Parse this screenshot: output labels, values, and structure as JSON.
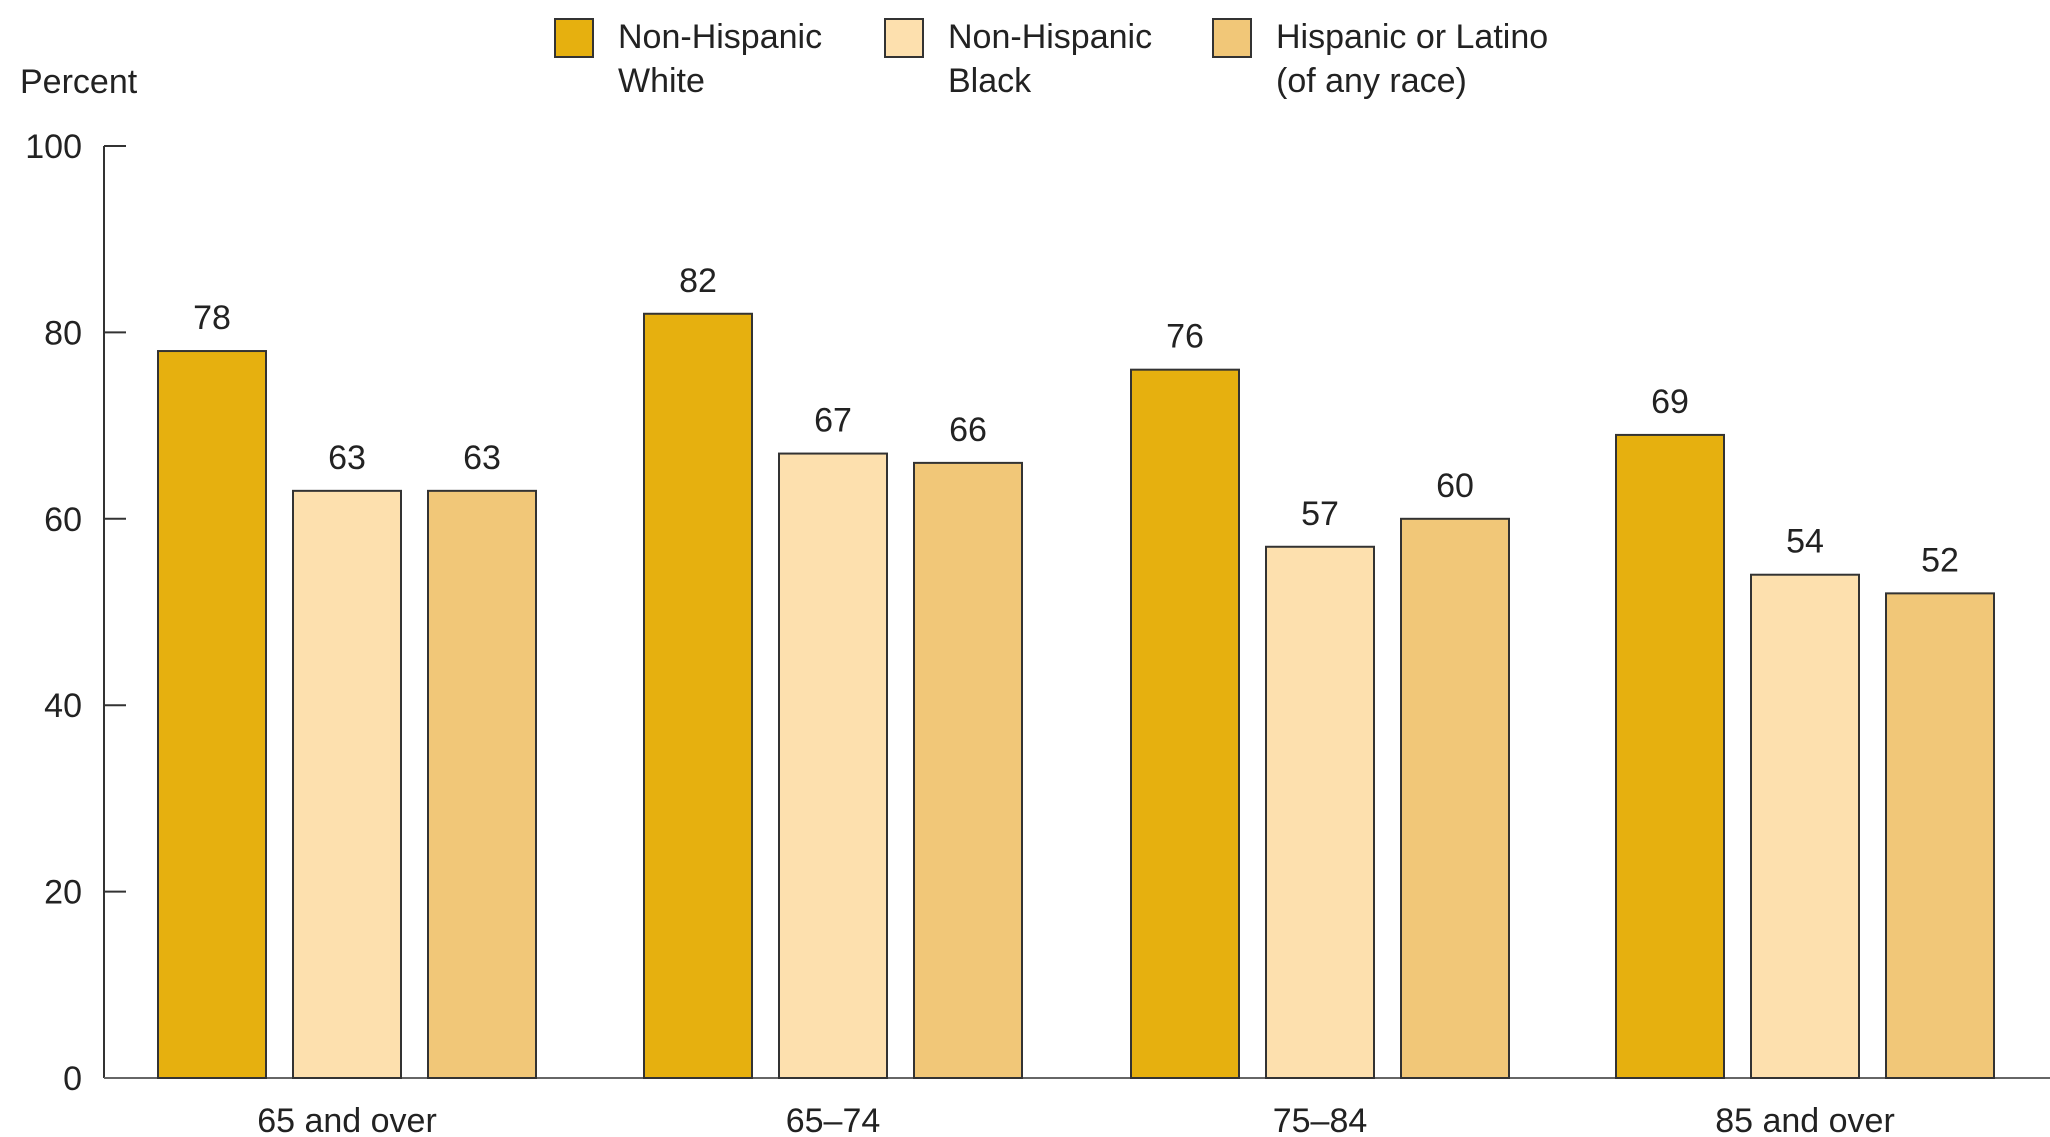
{
  "chart_data": {
    "type": "bar",
    "ylabel": "Percent",
    "ylim": [
      0,
      100
    ],
    "yticks": [
      0,
      20,
      40,
      60,
      80,
      100
    ],
    "grid": false,
    "legend_position": "top-center",
    "categories": [
      "65 and over",
      "65–74",
      "75–84",
      "85 and over"
    ],
    "series": [
      {
        "name": "Non-Hispanic White",
        "legend_lines": [
          "Non-Hispanic",
          "White"
        ],
        "color": "#E6B00F",
        "values": [
          78,
          82,
          76,
          69
        ]
      },
      {
        "name": "Non-Hispanic Black",
        "legend_lines": [
          "Non-Hispanic",
          "Black"
        ],
        "color": "#FDE0AE",
        "values": [
          63,
          67,
          57,
          54
        ]
      },
      {
        "name": "Hispanic or Latino (of any race)",
        "legend_lines": [
          "Hispanic or Latino",
          "(of any race)"
        ],
        "color": "#F1C778",
        "values": [
          63,
          66,
          60,
          52
        ]
      }
    ]
  }
}
